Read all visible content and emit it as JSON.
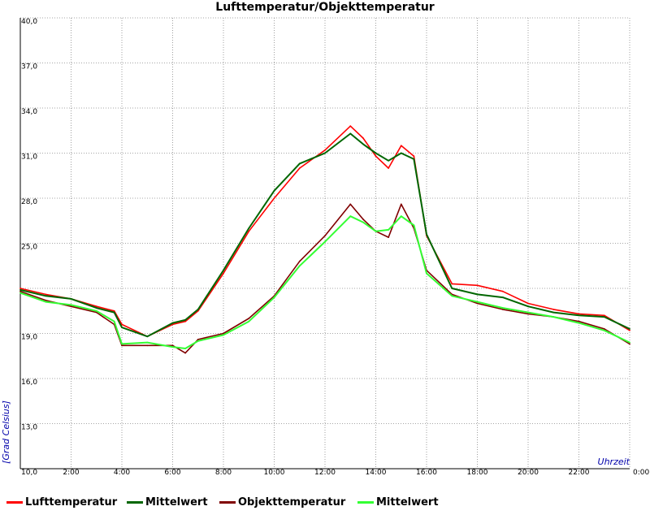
{
  "chart_data": {
    "type": "line",
    "title": "Lufttemperatur/Objekttemperatur",
    "xlabel": "Uhrzeit",
    "ylabel": "[Grad Celsius]",
    "ylim": [
      10,
      40
    ],
    "xlim": [
      0,
      24
    ],
    "grid": true,
    "legend_placement": "bottom",
    "y_ticks": [
      "10,0",
      "13,0",
      "16,0",
      "19,0",
      "",
      "25,0",
      "28,0",
      "31,0",
      "34,0",
      "37,0",
      "40,0"
    ],
    "x_ticks": [
      "2:00",
      "4:00",
      "6:00",
      "8:00",
      "10:00",
      "12:00",
      "14:00",
      "16:00",
      "18:00",
      "20:00",
      "22:00",
      "0:00"
    ],
    "x": [
      0,
      1,
      2,
      3,
      3.7,
      4,
      5,
      6,
      6.5,
      7,
      8,
      9,
      10,
      11,
      12,
      13,
      13.5,
      14,
      14.5,
      15,
      15.5,
      16,
      17,
      18,
      19,
      20,
      21,
      22,
      23,
      24
    ],
    "series": [
      {
        "name": "Lufttemperatur",
        "color": "#ff0000",
        "values": [
          22.0,
          21.6,
          21.3,
          20.8,
          20.5,
          19.6,
          18.8,
          19.6,
          19.8,
          20.5,
          23.0,
          25.8,
          28.0,
          30.0,
          31.2,
          32.8,
          32.0,
          30.8,
          30.0,
          31.5,
          30.8,
          25.5,
          22.3,
          22.2,
          21.8,
          21.0,
          20.6,
          20.3,
          20.2,
          19.2
        ]
      },
      {
        "name": "Mittelwert",
        "color": "#006600",
        "values": [
          21.9,
          21.5,
          21.3,
          20.7,
          20.4,
          19.4,
          18.8,
          19.7,
          19.9,
          20.6,
          23.2,
          26.0,
          28.5,
          30.3,
          31.0,
          32.3,
          31.6,
          31.0,
          30.5,
          31.0,
          30.6,
          25.6,
          22.0,
          21.6,
          21.4,
          20.8,
          20.4,
          20.2,
          20.1,
          19.3
        ]
      },
      {
        "name": "Objekttemperatur",
        "color": "#800000",
        "values": [
          21.8,
          21.2,
          20.8,
          20.4,
          19.6,
          18.2,
          18.2,
          18.2,
          17.7,
          18.6,
          19.0,
          20.0,
          21.5,
          23.8,
          25.5,
          27.6,
          26.6,
          25.8,
          25.4,
          27.6,
          26.0,
          23.2,
          21.6,
          21.0,
          20.6,
          20.3,
          20.1,
          19.8,
          19.3,
          18.3
        ]
      },
      {
        "name": "Mittelwert",
        "color": "#33ff33",
        "values": [
          21.7,
          21.1,
          20.9,
          20.5,
          19.8,
          18.3,
          18.4,
          18.1,
          18.0,
          18.5,
          18.9,
          19.8,
          21.4,
          23.5,
          25.1,
          26.8,
          26.4,
          25.8,
          25.9,
          26.8,
          26.2,
          23.0,
          21.5,
          21.1,
          20.7,
          20.4,
          20.1,
          19.7,
          19.2,
          18.4
        ]
      }
    ]
  }
}
